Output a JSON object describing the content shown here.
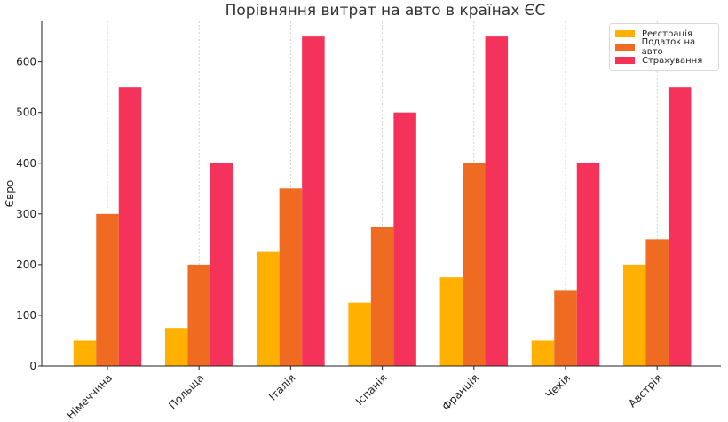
{
  "chart_data": {
    "type": "bar",
    "title": "Порівняння витрат на авто в країнах ЄС",
    "xlabel": "",
    "ylabel": "Євро",
    "categories": [
      "Німеччина",
      "Польща",
      "Італія",
      "Іспанія",
      "Франція",
      "Чехія",
      "Австрія"
    ],
    "series": [
      {
        "name": "Реєстрація",
        "color": "#ffb000",
        "values": [
          50,
          75,
          225,
          125,
          175,
          50,
          200
        ]
      },
      {
        "name": "Податок на авто",
        "color": "#f06b22",
        "values": [
          300,
          200,
          350,
          275,
          400,
          150,
          250
        ]
      },
      {
        "name": "Страхування",
        "color": "#f5325a",
        "values": [
          550,
          400,
          650,
          500,
          650,
          400,
          550
        ]
      }
    ],
    "ylim": [
      0,
      680
    ],
    "yticks": [
      0,
      100,
      200,
      300,
      400,
      500,
      600
    ],
    "grid": "x-dotted",
    "legend_position": "top-right"
  }
}
